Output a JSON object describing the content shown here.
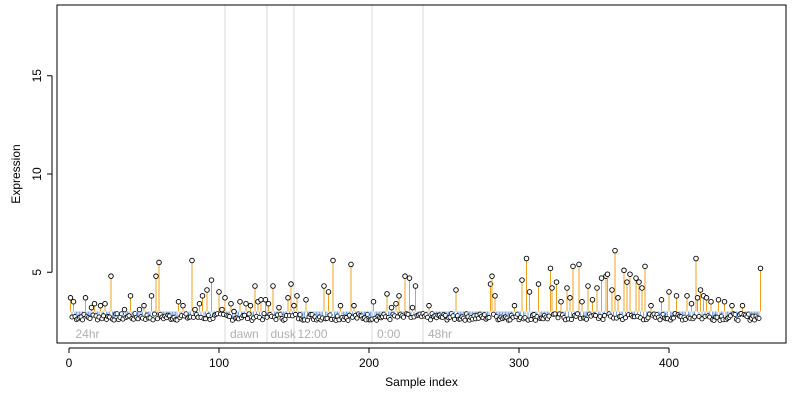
{
  "chart_data": {
    "type": "scatter",
    "title": "",
    "xlabel": "Sample index",
    "ylabel": "Expression",
    "xlim": [
      -8,
      478
    ],
    "ylim": [
      1.4,
      18.6
    ],
    "x_ticks": [
      0,
      100,
      200,
      300,
      400
    ],
    "y_ticks": [
      5,
      10,
      15
    ],
    "baseline": 3.0,
    "grid": false,
    "legend": "none",
    "group_boundaries": [
      104,
      132,
      150,
      202,
      236
    ],
    "group_labels": [
      {
        "text": "24hr",
        "x": 3
      },
      {
        "text": "dawn",
        "x": 106
      },
      {
        "text": "dusk",
        "x": 133
      },
      {
        "text": "12:00",
        "x": 151
      },
      {
        "text": "0:00",
        "x": 204
      },
      {
        "text": "48hr",
        "x": 238
      }
    ],
    "highlighted": [
      [
        1,
        3.7
      ],
      [
        3,
        3.5
      ],
      [
        11,
        3.7
      ],
      [
        15,
        3.2
      ],
      [
        17,
        3.4
      ],
      [
        21,
        3.3
      ],
      [
        24,
        3.4
      ],
      [
        28,
        4.8
      ],
      [
        37,
        3.1
      ],
      [
        41,
        3.8
      ],
      [
        47,
        3.1
      ],
      [
        50,
        3.3
      ],
      [
        55,
        3.8
      ],
      [
        58,
        4.8
      ],
      [
        60,
        5.5
      ],
      [
        73,
        3.5
      ],
      [
        76,
        3.3
      ],
      [
        82,
        5.6
      ],
      [
        84,
        3.1
      ],
      [
        87,
        3.4
      ],
      [
        89,
        3.8
      ],
      [
        92,
        4.1
      ],
      [
        95,
        4.6
      ],
      [
        100,
        4.0
      ],
      [
        102,
        3.1
      ],
      [
        104,
        3.7
      ],
      [
        108,
        3.4
      ],
      [
        110,
        3.0
      ],
      [
        114,
        3.5
      ],
      [
        118,
        3.4
      ],
      [
        121,
        3.3
      ],
      [
        124,
        4.3
      ],
      [
        126,
        3.5
      ],
      [
        128,
        3.6
      ],
      [
        131,
        3.6
      ],
      [
        133,
        3.4
      ],
      [
        136,
        4.3
      ],
      [
        140,
        3.2
      ],
      [
        146,
        3.7
      ],
      [
        148,
        4.4
      ],
      [
        150,
        3.3
      ],
      [
        152,
        3.8
      ],
      [
        158,
        3.6
      ],
      [
        170,
        4.3
      ],
      [
        173,
        4.0
      ],
      [
        176,
        5.6
      ],
      [
        181,
        3.3
      ],
      [
        188,
        5.4
      ],
      [
        190,
        3.3
      ],
      [
        203,
        3.5
      ],
      [
        212,
        3.9
      ],
      [
        215,
        3.2
      ],
      [
        218,
        3.4
      ],
      [
        220,
        3.8
      ],
      [
        224,
        4.8
      ],
      [
        227,
        4.7
      ],
      [
        229,
        3.2
      ],
      [
        231,
        4.3
      ],
      [
        240,
        3.3
      ],
      [
        258,
        4.1
      ],
      [
        281,
        4.4
      ],
      [
        282,
        4.8
      ],
      [
        284,
        3.8
      ],
      [
        297,
        3.3
      ],
      [
        302,
        4.6
      ],
      [
        305,
        5.7
      ],
      [
        307,
        4.0
      ],
      [
        313,
        4.4
      ],
      [
        321,
        5.2
      ],
      [
        322,
        4.2
      ],
      [
        325,
        4.5
      ],
      [
        328,
        3.5
      ],
      [
        332,
        4.2
      ],
      [
        334,
        3.7
      ],
      [
        336,
        5.3
      ],
      [
        340,
        5.4
      ],
      [
        342,
        3.5
      ],
      [
        346,
        4.3
      ],
      [
        349,
        3.6
      ],
      [
        352,
        4.2
      ],
      [
        355,
        4.7
      ],
      [
        358,
        4.8
      ],
      [
        359,
        4.9
      ],
      [
        362,
        4.1
      ],
      [
        364,
        6.1
      ],
      [
        366,
        3.7
      ],
      [
        370,
        5.1
      ],
      [
        372,
        4.5
      ],
      [
        374,
        4.9
      ],
      [
        378,
        4.7
      ],
      [
        380,
        4.5
      ],
      [
        382,
        4.2
      ],
      [
        384,
        5.3
      ],
      [
        388,
        3.3
      ],
      [
        395,
        3.6
      ],
      [
        400,
        4.0
      ],
      [
        405,
        3.8
      ],
      [
        412,
        3.8
      ],
      [
        415,
        3.4
      ],
      [
        418,
        5.7
      ],
      [
        419,
        3.7
      ],
      [
        421,
        4.1
      ],
      [
        423,
        3.8
      ],
      [
        425,
        3.7
      ],
      [
        428,
        3.5
      ],
      [
        433,
        3.6
      ],
      [
        437,
        3.5
      ],
      [
        442,
        3.3
      ],
      [
        449,
        3.3
      ],
      [
        461,
        5.2
      ]
    ],
    "colors": {
      "highlight_stem": "#f0a020",
      "background_stem": "#7fa8e0",
      "group_line": "#d8d8d8",
      "marker_stroke": "#000000",
      "axis": "#000000"
    }
  }
}
